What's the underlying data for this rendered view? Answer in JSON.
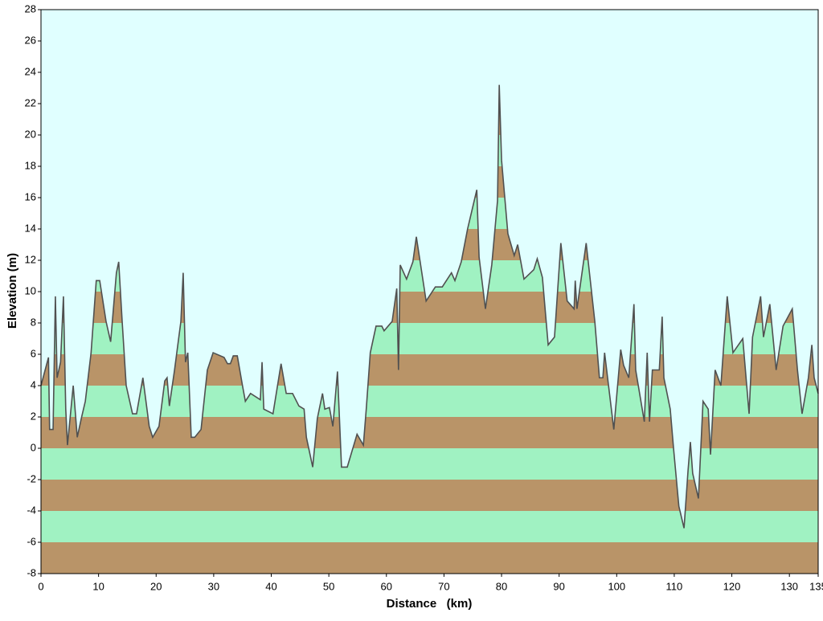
{
  "chart_data": {
    "type": "area",
    "xlabel": "Distance   (km)",
    "ylabel": "Elevation (m)",
    "x": [
      0,
      1.3,
      1.5,
      2.1,
      2.5,
      2.8,
      3.4,
      3.9,
      4.3,
      4.6,
      5.6,
      6.3,
      7.0,
      7.7,
      8.7,
      9.6,
      10.2,
      11.3,
      12.1,
      13.1,
      13.5,
      14.1,
      14.8,
      15.9,
      16.6,
      17.7,
      18.8,
      19.4,
      20.5,
      21.5,
      21.9,
      22.3,
      23.2,
      24.3,
      24.7,
      25.1,
      25.5,
      26.1,
      26.7,
      27.8,
      28.9,
      29.9,
      31.8,
      32.4,
      32.9,
      33.4,
      34.1,
      35.0,
      35.5,
      36.4,
      38.1,
      38.4,
      38.7,
      40.3,
      41.7,
      42.6,
      43.7,
      44.8,
      45.7,
      46.1,
      47.2,
      48.0,
      48.9,
      49.3,
      50.1,
      50.7,
      51.5,
      52.2,
      53.2,
      54.9,
      56.0,
      56.5,
      57.2,
      58.2,
      59.2,
      59.6,
      61.0,
      61.8,
      62.1,
      62.4,
      63.5,
      64.6,
      65.2,
      66.9,
      68.5,
      69.7,
      71.3,
      71.9,
      73.0,
      74.1,
      75.7,
      76.1,
      77.2,
      78.3,
      79.3,
      79.6,
      80.0,
      81.1,
      82.2,
      82.8,
      83.9,
      85.6,
      86.2,
      87.1,
      88.1,
      89.2,
      90.3,
      91.4,
      92.6,
      92.8,
      93.1,
      94.7,
      96.2,
      97.0,
      97.6,
      97.9,
      99.5,
      100.7,
      101.2,
      102.1,
      103.0,
      103.3,
      104.8,
      105.3,
      105.7,
      106.2,
      107.4,
      107.9,
      108.2,
      109.3,
      109.9,
      110.8,
      111.7,
      112.4,
      112.8,
      113.2,
      114.2,
      115.0,
      115.9,
      116.3,
      117.1,
      118.1,
      119.2,
      120.2,
      121.9,
      123.0,
      123.6,
      125.0,
      125.5,
      126.6,
      127.7,
      128.9,
      130.5,
      131.4,
      132.2,
      133.3,
      133.9,
      134.3,
      135.0
    ],
    "values": [
      4.0,
      5.8,
      1.2,
      1.2,
      9.7,
      4.5,
      5.5,
      9.7,
      2.5,
      0.2,
      4.0,
      0.7,
      1.9,
      3.0,
      6.1,
      10.7,
      10.7,
      8.1,
      6.8,
      11.2,
      11.9,
      8.1,
      4.0,
      2.2,
      2.2,
      4.5,
      1.4,
      0.7,
      1.4,
      4.3,
      4.5,
      2.7,
      5.0,
      8.1,
      11.2,
      5.5,
      6.1,
      0.7,
      0.7,
      1.2,
      5.0,
      6.1,
      5.8,
      5.4,
      5.4,
      5.9,
      5.9,
      4.0,
      3.0,
      3.5,
      3.1,
      5.5,
      2.5,
      2.2,
      5.4,
      3.5,
      3.5,
      2.7,
      2.5,
      0.7,
      -1.2,
      1.9,
      3.5,
      2.5,
      2.6,
      1.4,
      4.9,
      -1.2,
      -1.2,
      0.9,
      0.2,
      2.5,
      6.1,
      7.8,
      7.8,
      7.5,
      8.1,
      10.2,
      5.0,
      11.7,
      10.8,
      11.9,
      13.5,
      9.4,
      10.3,
      10.3,
      11.2,
      10.7,
      11.9,
      14.0,
      16.5,
      12.2,
      8.9,
      11.7,
      15.8,
      23.2,
      18.4,
      13.7,
      12.3,
      13.0,
      10.8,
      11.4,
      12.1,
      10.9,
      6.6,
      7.1,
      13.1,
      9.4,
      8.9,
      10.7,
      8.9,
      13.1,
      8.1,
      4.5,
      4.5,
      6.1,
      1.2,
      6.3,
      5.3,
      4.5,
      9.2,
      5.0,
      1.7,
      6.1,
      1.7,
      5.0,
      5.0,
      8.4,
      4.5,
      2.5,
      -0.1,
      -3.7,
      -5.1,
      -1.4,
      0.4,
      -1.6,
      -3.2,
      3.0,
      2.5,
      -0.4,
      5.0,
      4.0,
      9.7,
      6.1,
      7.0,
      2.2,
      7.1,
      9.7,
      7.1,
      9.2,
      5.0,
      7.8,
      8.9,
      5.0,
      2.2,
      4.5,
      6.6,
      4.5,
      3.5
    ],
    "xlim": [
      0,
      135
    ],
    "xticks": [
      0,
      10,
      20,
      30,
      40,
      50,
      60,
      70,
      80,
      90,
      100,
      110,
      120,
      130,
      135
    ],
    "ylim": [
      -8,
      28
    ],
    "yticks": [
      -8,
      -6,
      -4,
      -2,
      0,
      2,
      4,
      6,
      8,
      10,
      12,
      14,
      16,
      18,
      20,
      22,
      24,
      26,
      28
    ],
    "band_colors": [
      "#b99468",
      "#a0f2c2"
    ],
    "line_color": "#505050",
    "background": "#e0ffff"
  }
}
